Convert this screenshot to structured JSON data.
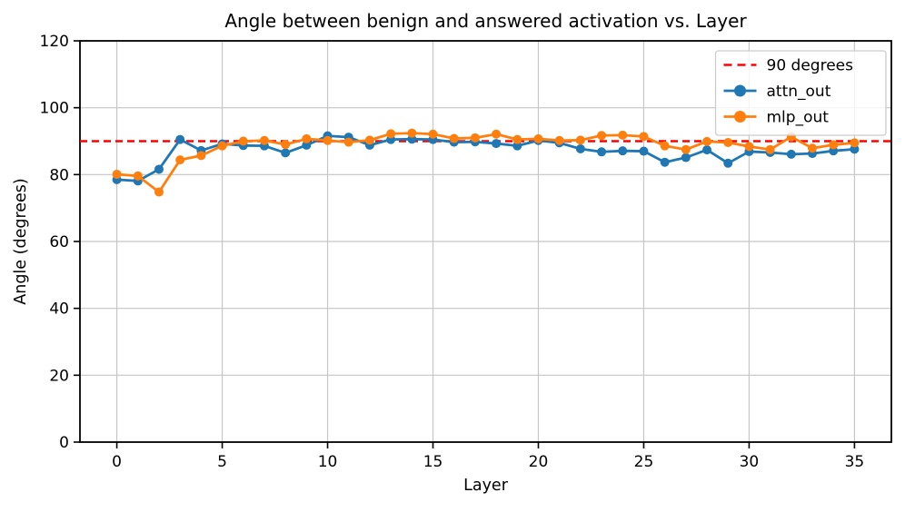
{
  "chart_data": {
    "type": "line",
    "title": "Angle between benign and answered activation vs. Layer",
    "xlabel": "Layer",
    "ylabel": "Angle (degrees)",
    "xlim": [
      -1.75,
      36.75
    ],
    "ylim": [
      0,
      120
    ],
    "x_ticks": [
      0,
      5,
      10,
      15,
      20,
      25,
      30,
      35
    ],
    "y_ticks": [
      0,
      20,
      40,
      60,
      80,
      100,
      120
    ],
    "grid": true,
    "grid_color": "#c6c6c6",
    "legend_position": "upper right",
    "reference_line": {
      "label": "90 degrees",
      "value": 90,
      "color": "#ff0000",
      "style": "dashed"
    },
    "x": [
      0,
      1,
      2,
      3,
      4,
      5,
      6,
      7,
      8,
      9,
      10,
      11,
      12,
      13,
      14,
      15,
      16,
      17,
      18,
      19,
      20,
      21,
      22,
      23,
      24,
      25,
      26,
      27,
      28,
      29,
      30,
      31,
      32,
      33,
      34,
      35
    ],
    "series": [
      {
        "name": "attn_out",
        "color": "#1f77b4",
        "marker": "circle",
        "values": [
          78.5,
          78.1,
          81.6,
          90.5,
          87.2,
          89.2,
          88.7,
          88.6,
          86.5,
          88.8,
          91.6,
          91.2,
          88.8,
          90.5,
          90.6,
          90.5,
          89.7,
          89.8,
          89.3,
          88.6,
          90.2,
          89.5,
          87.7,
          86.8,
          87.1,
          87.0,
          83.7,
          85.1,
          87.4,
          83.4,
          86.9,
          86.6,
          86.1,
          86.3,
          87.1,
          87.6
        ]
      },
      {
        "name": "mlp_out",
        "color": "#ff7f0e",
        "marker": "circle",
        "values": [
          80.1,
          79.6,
          74.8,
          84.4,
          85.7,
          88.6,
          90.0,
          90.2,
          89.0,
          90.7,
          90.2,
          89.7,
          90.3,
          92.2,
          92.4,
          92.1,
          90.8,
          91.0,
          92.1,
          90.5,
          90.7,
          90.2,
          90.3,
          91.7,
          91.8,
          91.4,
          88.6,
          87.5,
          89.9,
          89.6,
          88.4,
          87.5,
          91.3,
          87.9,
          88.9,
          89.5
        ]
      }
    ]
  }
}
